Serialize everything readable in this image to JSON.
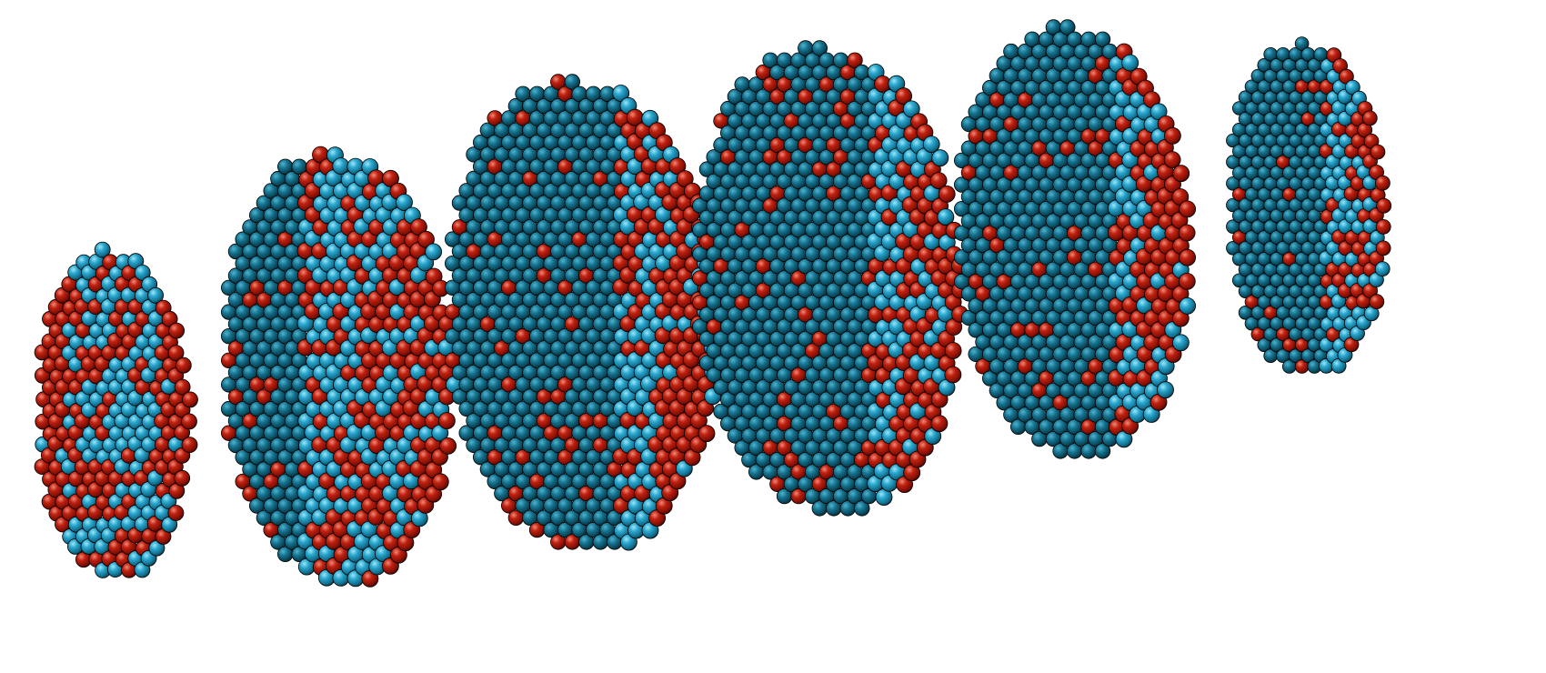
{
  "scene": {
    "background": "#ffffff",
    "atom_types": [
      {
        "name": "cyan-atom",
        "color": "#1f8fb0"
      },
      {
        "name": "red-atom",
        "color": "#a3160d"
      }
    ],
    "slices": [
      {
        "name": "slice-1",
        "red_fraction": 0.45
      },
      {
        "name": "slice-2",
        "red_fraction": 0.4
      },
      {
        "name": "slice-3",
        "red_fraction": 0.38
      },
      {
        "name": "slice-4",
        "red_fraction": 0.35
      },
      {
        "name": "slice-5",
        "red_fraction": 0.33
      },
      {
        "name": "slice-6",
        "red_fraction": 0.22
      }
    ]
  }
}
